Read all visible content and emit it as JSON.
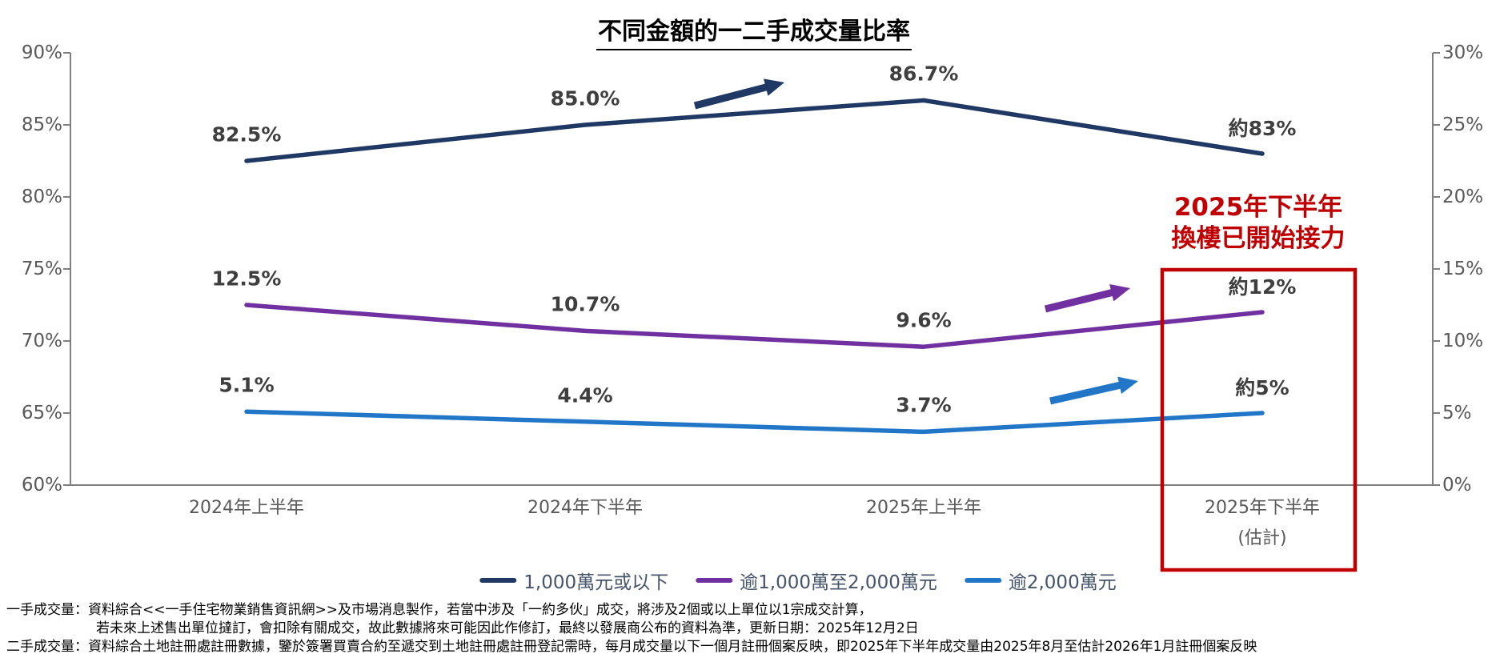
{
  "title": "不同金額的一二手成交量比率",
  "chart_data": {
    "type": "line",
    "categories": [
      [
        "2024年上半年"
      ],
      [
        "2024年下半年"
      ],
      [
        "2025年上半年"
      ],
      [
        "2025年下半年",
        "(估計)"
      ]
    ],
    "series": [
      {
        "name": "1,000萬元或以下",
        "axis": "left",
        "color": "#1F3864",
        "values": [
          82.5,
          85.0,
          86.7,
          83
        ],
        "point_labels": [
          "82.5%",
          "85.0%",
          "86.7%",
          "約83%"
        ]
      },
      {
        "name": "逾1,000萬至2,000萬元",
        "axis": "right",
        "color": "#7030A0",
        "values": [
          12.5,
          10.7,
          9.6,
          12
        ],
        "point_labels": [
          "12.5%",
          "10.7%",
          "9.6%",
          "約12%"
        ]
      },
      {
        "name": "逾2,000萬元",
        "axis": "right",
        "color": "#2176C7",
        "values": [
          5.1,
          4.4,
          3.7,
          5
        ],
        "point_labels": [
          "5.1%",
          "4.4%",
          "3.7%",
          "約5%"
        ]
      }
    ],
    "left_axis": {
      "min": 60,
      "max": 90,
      "step": 5,
      "tick_labels_top_to_bottom": [
        "90%",
        "85%",
        "80%",
        "75%",
        "70%",
        "65%",
        "60%"
      ]
    },
    "right_axis": {
      "min": 0,
      "max": 30,
      "step": 5,
      "tick_labels_top_to_bottom": [
        "30%",
        "25%",
        "20%",
        "15%",
        "10%",
        "5%",
        "0%"
      ]
    },
    "grid": false,
    "legend_position": "bottom",
    "trend_arrows": [
      {
        "name": "navy-trend-arrow",
        "series": 0
      },
      {
        "name": "purple-trend-arrow",
        "series": 1
      },
      {
        "name": "blue-trend-arrow",
        "series": 2
      }
    ]
  },
  "annotation": {
    "lines": [
      "2025年下半年",
      "換樓已開始接力"
    ],
    "color": "#C00000",
    "highlight_box": true
  },
  "axis_colors": {
    "axis_line": "#7F7F7F",
    "tick_label": "#595959",
    "data_label": "#3F3F3F"
  },
  "footnotes": [
    {
      "text": "一手成交量：資料綜合<<一手住宅物業銷售資訊網>>及市場消息製作，若當中涉及「一約多伙」成交，將涉及2個或以上單位以1宗成交計算，"
    },
    {
      "text": "若未來上述售出單位撻訂，會扣除有關成交，故此數據將來可能因此作修訂，最終以發展商公布的資料為準，更新日期：2025年12月2日"
    },
    {
      "text": "二手成交量：資料綜合土地註冊處註冊數據，鑒於簽署買賣合約至遞交到土地註冊處註冊登記需時，每月成交量以下一個月註冊個案反映，即2025年下半年成交量由2025年8月至估計2026年1月註冊個案反映"
    }
  ]
}
